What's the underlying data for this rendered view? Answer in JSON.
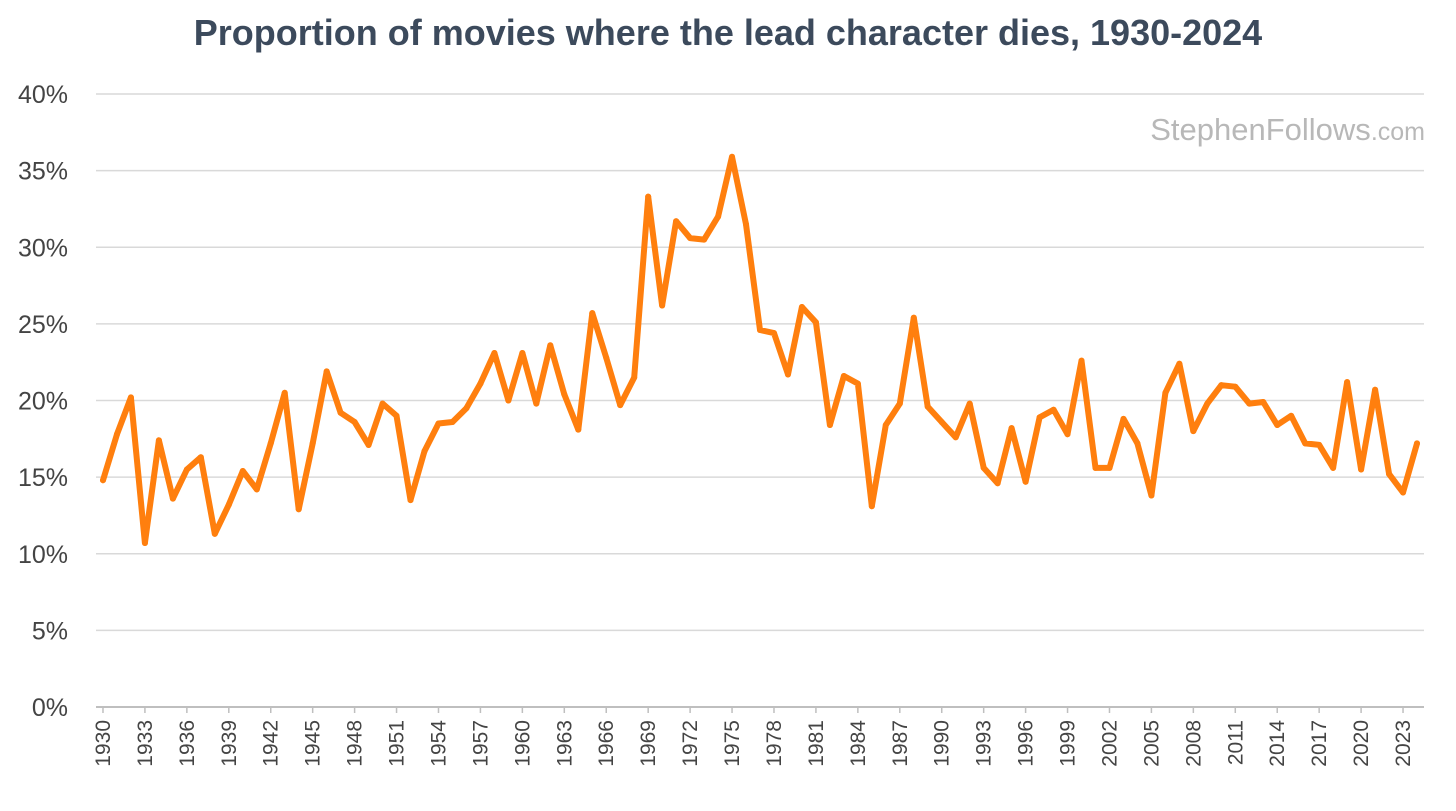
{
  "chart_data": {
    "type": "line",
    "title": "Proportion of movies where the lead character dies, 1930-2024",
    "watermark": {
      "name": "StephenFollows",
      "suffix": ".com"
    },
    "xlabel": "",
    "ylabel": "",
    "ylim": [
      0,
      40
    ],
    "y_tick_values": [
      0,
      5,
      10,
      15,
      20,
      25,
      30,
      35,
      40
    ],
    "y_tick_labels": [
      "0%",
      "5%",
      "10%",
      "15%",
      "20%",
      "25%",
      "30%",
      "35%",
      "40%"
    ],
    "x_tick_labels": [
      "1930",
      "1933",
      "1936",
      "1939",
      "1942",
      "1945",
      "1948",
      "1951",
      "1954",
      "1957",
      "1960",
      "1963",
      "1966",
      "1969",
      "1972",
      "1975",
      "1978",
      "1981",
      "1984",
      "1987",
      "1990",
      "1993",
      "1996",
      "1999",
      "2002",
      "2005",
      "2008",
      "2011",
      "2014",
      "2017",
      "2020",
      "2023"
    ],
    "grid": true,
    "legend": "none",
    "series": [
      {
        "color": "#ff7f0e",
        "x": [
          1930,
          1931,
          1932,
          1933,
          1934,
          1935,
          1936,
          1937,
          1938,
          1939,
          1940,
          1941,
          1942,
          1943,
          1944,
          1945,
          1946,
          1947,
          1948,
          1949,
          1950,
          1951,
          1952,
          1953,
          1954,
          1955,
          1956,
          1957,
          1958,
          1959,
          1960,
          1961,
          1962,
          1963,
          1964,
          1965,
          1966,
          1967,
          1968,
          1969,
          1970,
          1971,
          1972,
          1973,
          1974,
          1975,
          1976,
          1977,
          1978,
          1979,
          1980,
          1981,
          1982,
          1983,
          1984,
          1985,
          1986,
          1987,
          1988,
          1989,
          1990,
          1991,
          1992,
          1993,
          1994,
          1995,
          1996,
          1997,
          1998,
          1999,
          2000,
          2001,
          2002,
          2003,
          2004,
          2005,
          2006,
          2007,
          2008,
          2009,
          2010,
          2011,
          2012,
          2013,
          2014,
          2015,
          2016,
          2017,
          2018,
          2019,
          2020,
          2021,
          2022,
          2023,
          2024
        ],
        "values": [
          14.8,
          17.8,
          20.2,
          10.7,
          17.4,
          13.6,
          15.5,
          16.3,
          11.3,
          13.2,
          15.4,
          14.2,
          17.2,
          20.5,
          12.9,
          17.2,
          21.9,
          19.2,
          18.6,
          17.1,
          19.8,
          19.0,
          13.5,
          16.7,
          18.5,
          18.6,
          19.5,
          21.1,
          23.1,
          20.0,
          23.1,
          19.8,
          23.6,
          20.4,
          18.1,
          25.7,
          22.8,
          19.7,
          21.5,
          33.3,
          26.2,
          31.7,
          30.6,
          30.5,
          32.0,
          35.9,
          31.5,
          24.6,
          24.4,
          21.7,
          26.1,
          25.1,
          18.4,
          21.6,
          21.1,
          13.1,
          18.4,
          19.8,
          25.4,
          19.6,
          18.6,
          17.6,
          19.8,
          15.6,
          14.6,
          18.2,
          14.7,
          18.9,
          19.4,
          17.8,
          22.6,
          15.6,
          15.6,
          18.8,
          17.2,
          13.8,
          20.5,
          22.4,
          18.0,
          19.8,
          21.0,
          20.9,
          19.8,
          19.9,
          18.4,
          19.0,
          17.2,
          17.1,
          15.6,
          21.2,
          15.5,
          20.7,
          15.2,
          14.0,
          17.2
        ]
      }
    ]
  }
}
